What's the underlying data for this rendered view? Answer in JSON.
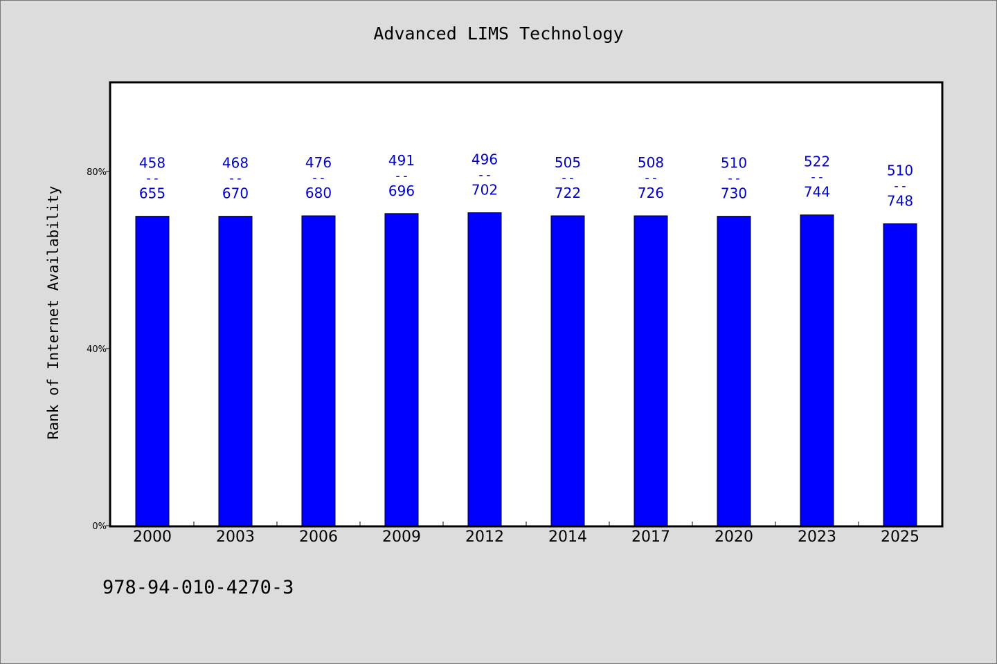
{
  "page": {
    "background": "#dcdcdc",
    "isbn": "978-94-010-4270-3"
  },
  "chart_data": {
    "type": "bar",
    "title": "Advanced LIMS Technology",
    "xlabel": "",
    "ylabel": "Rank of Internet Availability",
    "categories": [
      "2000",
      "2003",
      "2006",
      "2009",
      "2012",
      "2014",
      "2017",
      "2020",
      "2023",
      "2025"
    ],
    "values": [
      69.9,
      69.9,
      70.0,
      70.5,
      70.7,
      70.0,
      70.0,
      69.9,
      70.2,
      68.2
    ],
    "numerators": [
      458,
      468,
      476,
      491,
      496,
      505,
      508,
      510,
      522,
      510
    ],
    "denominators": [
      655,
      670,
      680,
      696,
      702,
      722,
      726,
      730,
      744,
      748
    ],
    "label_separator": "--",
    "ylim": [
      0,
      100
    ],
    "yticks": [
      0,
      40,
      80
    ],
    "ytick_labels": [
      "0%",
      "40%",
      "80%"
    ],
    "grid": false,
    "legend": "none",
    "bar_color": "#0000ff",
    "label_color": "#0000cc",
    "plot_background": "#ffffff"
  }
}
